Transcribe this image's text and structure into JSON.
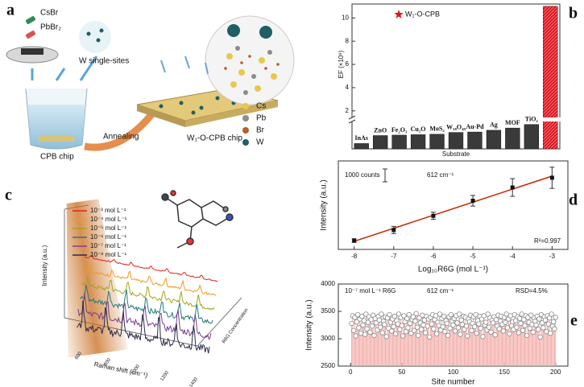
{
  "panel_labels": [
    "a",
    "b",
    "c",
    "d",
    "e"
  ],
  "panel_a": {
    "precursors": [
      "CsBr",
      "PbBr₂"
    ],
    "source": "W single-sites",
    "chip": "CPB chip",
    "process": "Annealing",
    "product": "W₁-O-CPB chip",
    "legend": [
      {
        "label": "Cs",
        "color": "#e8c84a"
      },
      {
        "label": "Pb",
        "color": "#8c8c8c"
      },
      {
        "label": "Br",
        "color": "#b0602a"
      },
      {
        "label": "W",
        "color": "#1f5f66"
      }
    ]
  },
  "panel_c": {
    "ylabel": "Intensity (a.u.)",
    "xlabel": "Raman shift (cm⁻¹)",
    "zlabel": "R6G Concentration",
    "xticks": [
      "600",
      "800",
      "1000",
      "1200",
      "1400"
    ],
    "legend": [
      {
        "label": "10⁻³ mol L⁻¹",
        "color": "#e2231a"
      },
      {
        "label": "10⁻⁴ mol L⁻¹",
        "color": "#f39a1e"
      },
      {
        "label": "10⁻⁵ mol L⁻¹",
        "color": "#a5a51c"
      },
      {
        "label": "10⁻⁶ mol L⁻¹",
        "color": "#1f7b7b"
      },
      {
        "label": "10⁻⁷ mol L⁻¹",
        "color": "#7a3f8f"
      },
      {
        "label": "10⁻⁸ mol L⁻¹",
        "color": "#2a2a4a"
      }
    ]
  },
  "chart_data": [
    {
      "type": "bar",
      "ylabel": "EF (×10⁶)",
      "xlabel": "Substrate",
      "categories": [
        "InAs",
        "ZnO",
        "Fe₂O₃",
        "Cu₂O",
        "MoS₂",
        "W₁₈O₄₉",
        "Au-Pd",
        "Ag",
        "MOF",
        "TiO₂",
        null
      ],
      "values": [
        0.12,
        0.3,
        0.31,
        0.32,
        0.33,
        0.37,
        0.38,
        0.42,
        0.47,
        0.55,
        11
      ],
      "color": "#3a3a3a",
      "highlight_color": "#e0141e",
      "legend": "W₁-O-CPB",
      "ylim": [
        0,
        11.2
      ],
      "ybreak": [
        0.6,
        1.5
      ],
      "yticks": [
        2,
        4,
        6,
        8,
        10
      ]
    },
    {
      "type": "scatter",
      "xlabel": "Log₁₀R6G (mol L⁻¹)",
      "ylabel": "Intensity (a.u.)",
      "annotations": [
        "1000 counts",
        "612 cm⁻¹",
        "R²=0.997"
      ],
      "x": [
        -8,
        -7,
        -6,
        -5,
        -4,
        -3
      ],
      "values": [
        1.0,
        2.2,
        3.8,
        5.5,
        7.0,
        8.1
      ],
      "errors": [
        0.2,
        0.4,
        0.4,
        0.6,
        1.0,
        1.2
      ],
      "color": "#111111",
      "fit_color": "#cc2200",
      "xlim": [
        -8.4,
        -2.6
      ],
      "ylim": [
        0,
        10
      ],
      "xticks": [
        -8,
        -7,
        -6,
        -5,
        -4,
        -3
      ]
    },
    {
      "type": "bar",
      "xlabel": "Site number",
      "ylabel": "Intensity (a.u.)",
      "annotations": [
        "10⁻⁷ mol L⁻¹ R6G",
        "612 cm⁻¹",
        "RSD=4.5%"
      ],
      "color": "#f2aaa6",
      "marker_color": "#888888",
      "xlim": [
        -12,
        212
      ],
      "ylim": [
        2500,
        4000
      ],
      "xticks": [
        0,
        50,
        100,
        150,
        200
      ],
      "yticks": [
        2500,
        3000,
        3500,
        4000
      ],
      "x": [
        1,
        2,
        3,
        4,
        5,
        6,
        7,
        8,
        9,
        10,
        11,
        12,
        13,
        14,
        15,
        16,
        17,
        18,
        19,
        20,
        21,
        22,
        23,
        24,
        25,
        26,
        27,
        28,
        29,
        30,
        31,
        32,
        33,
        34,
        35,
        36,
        37,
        38,
        39,
        40,
        41,
        42,
        43,
        44,
        45,
        46,
        47,
        48,
        49,
        50,
        51,
        52,
        53,
        54,
        55,
        56,
        57,
        58,
        59,
        60,
        61,
        62,
        63,
        64,
        65,
        66,
        67,
        68,
        69,
        70,
        71,
        72,
        73,
        74,
        75,
        76,
        77,
        78,
        79,
        80,
        81,
        82,
        83,
        84,
        85,
        86,
        87,
        88,
        89,
        90,
        91,
        92,
        93,
        94,
        95,
        96,
        97,
        98,
        99,
        100,
        101,
        102,
        103,
        104,
        105,
        106,
        107,
        108,
        109,
        110,
        111,
        112,
        113,
        114,
        115,
        116,
        117,
        118,
        119,
        120,
        121,
        122,
        123,
        124,
        125,
        126,
        127,
        128,
        129,
        130,
        131,
        132,
        133,
        134,
        135,
        136,
        137,
        138,
        139,
        140,
        141,
        142,
        143,
        144,
        145,
        146,
        147,
        148,
        149,
        150,
        151,
        152,
        153,
        154,
        155,
        156,
        157,
        158,
        159,
        160,
        161,
        162,
        163,
        164,
        165,
        166,
        167,
        168,
        169,
        170,
        171,
        172,
        173,
        174,
        175,
        176,
        177,
        178,
        179,
        180,
        181,
        182,
        183,
        184,
        185,
        186,
        187,
        188,
        189,
        190,
        191,
        192,
        193,
        194,
        195,
        196,
        197,
        198,
        199,
        200
      ],
      "values": [
        3280,
        3420,
        3150,
        3390,
        3050,
        3310,
        3440,
        3200,
        3360,
        3100,
        3410,
        3250,
        3330,
        3080,
        3450,
        3180,
        3300,
        3400,
        3120,
        3350,
        3230,
        3430,
        3060,
        3370,
        3290,
        3160,
        3410,
        3340,
        3210,
        3450,
        3110,
        3320,
        3260,
        3400,
        3040,
        3380,
        3190,
        3440,
        3300,
        3140,
        3360,
        3220,
        3410,
        3090,
        3330,
        3270,
        3450,
        3170,
        3390,
        3240,
        3050,
        3420,
        3310,
        3130,
        3370,
        3200,
        3440,
        3280,
        3100,
        3350,
        3400,
        3150,
        3320,
        3460,
        3210,
        3060,
        3380,
        3290,
        3170,
        3430,
        3250,
        3340,
        3110,
        3410,
        3230,
        3360,
        3030,
        3390,
        3270,
        3440,
        3180,
        3350,
        3420,
        3090,
        3300,
        3240,
        3450,
        3160,
        3370,
        3220,
        3410,
        3130,
        3330,
        3280,
        3060,
        3400,
        3190,
        3440,
        3320,
        3250,
        3370,
        3140,
        3420,
        3290,
        3200,
        3450,
        3080,
        3340,
        3260,
        3410,
        3170,
        3390,
        3230,
        3050,
        3360,
        3310,
        3430,
        3150,
        3280,
        3400,
        3220,
        3440,
        3100,
        3330,
        3270,
        3410,
        3190,
        3360,
        3040,
        3420,
        3250,
        3300,
        3160,
        3450,
        3210,
        3380,
        3120,
        3340,
        3290,
        3400,
        3070,
        3350,
        3230,
        3430,
        3180,
        3320,
        3410,
        3260,
        3140,
        3390,
        3300,
        3450,
        3200,
        3360,
        3090,
        3420,
        3240,
        3310,
        3170,
        3440,
        3330,
        3210,
        3400,
        3110,
        3370,
        3280,
        3450,
        3150,
        3350,
        3240,
        3420,
        3060,
        3390,
        3300,
        3190,
        3430,
        3260,
        3120,
        3380,
        3320,
        3250,
        3410,
        3170,
        3360,
        3030,
        3440,
        3290,
        3200,
        3400,
        3340,
        3130,
        3420,
        3270,
        3380,
        3100,
        3450,
        3230,
        3310,
        3180,
        3390
      ]
    }
  ]
}
